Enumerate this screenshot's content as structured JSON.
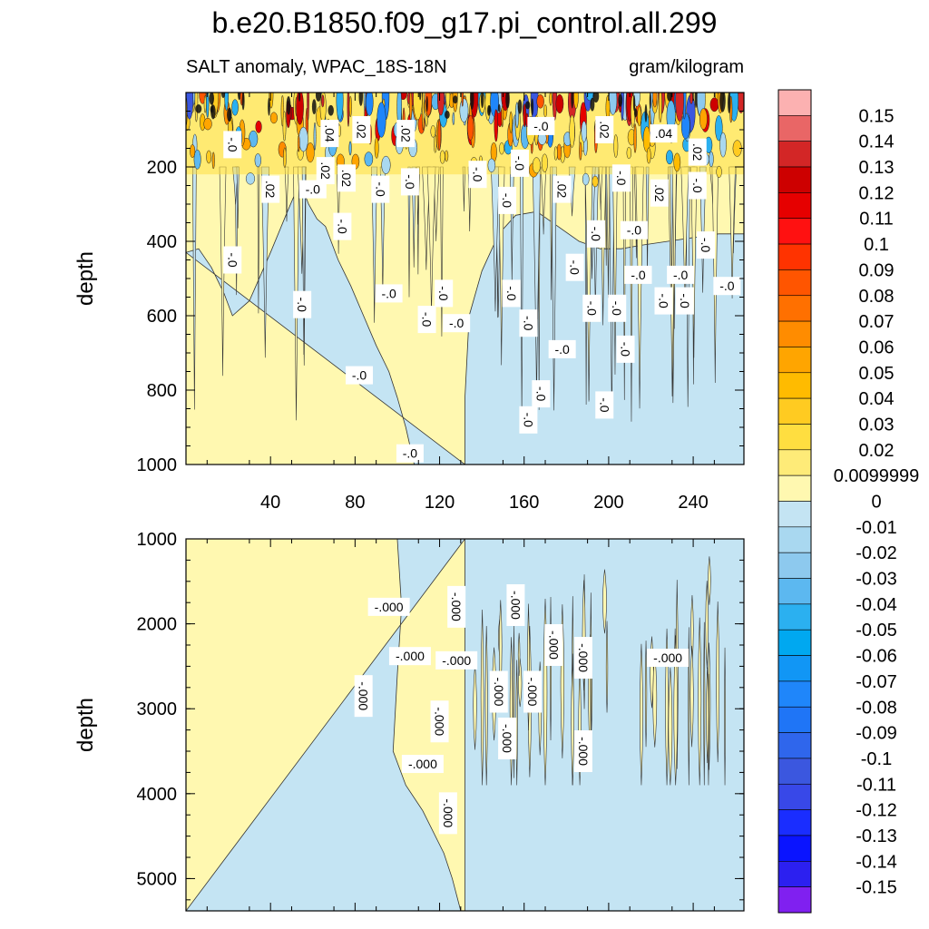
{
  "chart_data": {
    "type": "heatmap",
    "title": "b.e20.B1850.f09_g17.pi_control.all.299",
    "subtitle_left": "SALT anomaly, WPAC_18S-18N",
    "subtitle_right": "gram/kilogram",
    "x": {
      "range": [
        0,
        264
      ],
      "ticks": [
        40,
        80,
        120,
        160,
        200,
        240
      ],
      "tick_labels": [
        "40",
        "80",
        "120",
        "160",
        "200",
        "240"
      ]
    },
    "panels": [
      {
        "name": "upper-ocean",
        "ylabel": "depth",
        "ylim": [
          0,
          1000
        ],
        "ytick_values": [
          200,
          400,
          600,
          800,
          1000
        ],
        "yticks": [
          "200",
          "400",
          "600",
          "800",
          "1000"
        ],
        "sign_boundary": [
          [
            0,
            430
          ],
          [
            6,
            420
          ],
          [
            12,
            470
          ],
          [
            18,
            540
          ],
          [
            22,
            600
          ],
          [
            30,
            560
          ],
          [
            40,
            430
          ],
          [
            48,
            320
          ],
          [
            54,
            240
          ],
          [
            58,
            300
          ],
          [
            62,
            340
          ],
          [
            66,
            360
          ],
          [
            72,
            450
          ],
          [
            78,
            520
          ],
          [
            84,
            600
          ],
          [
            90,
            680
          ],
          [
            96,
            750
          ],
          [
            100,
            820
          ],
          [
            104,
            900
          ],
          [
            108,
            1000
          ],
          [
            132,
            1000
          ],
          [
            132,
            820
          ],
          [
            134,
            600
          ],
          [
            140,
            480
          ],
          [
            148,
            380
          ],
          [
            156,
            330
          ],
          [
            166,
            320
          ],
          [
            176,
            360
          ],
          [
            186,
            400
          ],
          [
            196,
            420
          ],
          [
            206,
            420
          ],
          [
            216,
            410
          ],
          [
            228,
            400
          ],
          [
            240,
            390
          ],
          [
            252,
            380
          ],
          [
            264,
            380
          ]
        ],
        "contour_labels": [
          {
            "x": 22,
            "d": 450,
            "text": "-.0"
          },
          {
            "x": 22,
            "d": 140,
            "text": "-.0"
          },
          {
            "x": 40,
            "d": 260,
            "text": ".02"
          },
          {
            "x": 55,
            "d": 570,
            "text": "-.0"
          },
          {
            "x": 60,
            "d": 260,
            "text": "-.0"
          },
          {
            "x": 66,
            "d": 210,
            "text": ".02"
          },
          {
            "x": 68,
            "d": 110,
            "text": ".04"
          },
          {
            "x": 74,
            "d": 360,
            "text": "-.0"
          },
          {
            "x": 76,
            "d": 230,
            "text": ".02"
          },
          {
            "x": 83,
            "d": 100,
            "text": ".02"
          },
          {
            "x": 82,
            "d": 760,
            "text": "-.0"
          },
          {
            "x": 92,
            "d": 260,
            "text": "-.0"
          },
          {
            "x": 96,
            "d": 540,
            "text": "-.0"
          },
          {
            "x": 104,
            "d": 110,
            "text": ".02"
          },
          {
            "x": 106,
            "d": 240,
            "text": "-.0"
          },
          {
            "x": 106,
            "d": 970,
            "text": "-.0"
          },
          {
            "x": 114,
            "d": 610,
            "text": "-.0"
          },
          {
            "x": 122,
            "d": 540,
            "text": "-.0"
          },
          {
            "x": 128,
            "d": 620,
            "text": "-.0"
          },
          {
            "x": 138,
            "d": 220,
            "text": "-.0"
          },
          {
            "x": 152,
            "d": 290,
            "text": "-.0"
          },
          {
            "x": 154,
            "d": 540,
            "text": "-.0"
          },
          {
            "x": 158,
            "d": 190,
            "text": "-.0"
          },
          {
            "x": 162,
            "d": 620,
            "text": "-.0"
          },
          {
            "x": 162,
            "d": 880,
            "text": "-.0"
          },
          {
            "x": 168,
            "d": 90,
            "text": "-.0"
          },
          {
            "x": 168,
            "d": 810,
            "text": "-.0"
          },
          {
            "x": 178,
            "d": 260,
            "text": ".02"
          },
          {
            "x": 178,
            "d": 690,
            "text": "-.0"
          },
          {
            "x": 184,
            "d": 470,
            "text": "-.0"
          },
          {
            "x": 192,
            "d": 580,
            "text": "-.0"
          },
          {
            "x": 194,
            "d": 380,
            "text": "-.0"
          },
          {
            "x": 198,
            "d": 100,
            "text": ".02"
          },
          {
            "x": 198,
            "d": 840,
            "text": "-.0"
          },
          {
            "x": 204,
            "d": 580,
            "text": "-.0"
          },
          {
            "x": 206,
            "d": 230,
            "text": "-.0"
          },
          {
            "x": 208,
            "d": 690,
            "text": "-.0"
          },
          {
            "x": 212,
            "d": 370,
            "text": "-.0"
          },
          {
            "x": 214,
            "d": 490,
            "text": "-.0"
          },
          {
            "x": 224,
            "d": 270,
            "text": ".02"
          },
          {
            "x": 226,
            "d": 110,
            "text": ".04"
          },
          {
            "x": 226,
            "d": 560,
            "text": "-.0"
          },
          {
            "x": 234,
            "d": 490,
            "text": "-.0"
          },
          {
            "x": 236,
            "d": 560,
            "text": "-.0"
          },
          {
            "x": 242,
            "d": 160,
            "text": ".02"
          },
          {
            "x": 242,
            "d": 250,
            "text": "-.0"
          },
          {
            "x": 246,
            "d": 410,
            "text": "-.0"
          },
          {
            "x": 256,
            "d": 520,
            "text": "-.0"
          }
        ]
      },
      {
        "name": "deep-ocean",
        "ylabel": "depth",
        "ylim": [
          1000,
          5380
        ],
        "ytick_values": [
          1000,
          2000,
          3000,
          4000,
          5000
        ],
        "yticks": [
          "1000",
          "2000",
          "3000",
          "4000",
          "5000"
        ],
        "sign_boundary": [
          [
            100,
            1000
          ],
          [
            102,
            1800
          ],
          [
            100,
            2600
          ],
          [
            98,
            3500
          ],
          [
            104,
            3900
          ],
          [
            112,
            4200
          ],
          [
            122,
            4700
          ],
          [
            126,
            5000
          ],
          [
            130,
            5380
          ],
          [
            132,
            5380
          ],
          [
            132,
            1000
          ]
        ],
        "contour_labels": [
          {
            "x": 84,
            "d": 2850,
            "text": "-.000"
          },
          {
            "x": 96,
            "d": 1800,
            "text": "-.000"
          },
          {
            "x": 106,
            "d": 2380,
            "text": "-.000"
          },
          {
            "x": 112,
            "d": 3650,
            "text": "-.000"
          },
          {
            "x": 120,
            "d": 3150,
            "text": "-.000"
          },
          {
            "x": 124,
            "d": 4230,
            "text": "-.000"
          },
          {
            "x": 128,
            "d": 1800,
            "text": "-.000"
          },
          {
            "x": 128,
            "d": 2430,
            "text": "-.000"
          },
          {
            "x": 148,
            "d": 2800,
            "text": "-.000"
          },
          {
            "x": 152,
            "d": 3350,
            "text": "-.000"
          },
          {
            "x": 156,
            "d": 1780,
            "text": "-.000"
          },
          {
            "x": 164,
            "d": 2800,
            "text": "-.000"
          },
          {
            "x": 174,
            "d": 2250,
            "text": "-.000"
          },
          {
            "x": 188,
            "d": 2400,
            "text": "-.000"
          },
          {
            "x": 188,
            "d": 3500,
            "text": "-.000"
          },
          {
            "x": 228,
            "d": 2400,
            "text": "-.000"
          }
        ]
      }
    ],
    "colorbar": {
      "labels": [
        "0.15",
        "0.14",
        "0.13",
        "0.12",
        "0.11",
        "0.1",
        "0.09",
        "0.08",
        "0.07",
        "0.06",
        "0.05",
        "0.04",
        "0.03",
        "0.02",
        "0.0099999",
        "0",
        "-0.01",
        "-0.02",
        "-0.03",
        "-0.04",
        "-0.05",
        "-0.06",
        "-0.07",
        "-0.08",
        "-0.09",
        "-0.1",
        "-0.11",
        "-0.12",
        "-0.13",
        "-0.14",
        "-0.15"
      ],
      "colors": [
        "#fcb1b1",
        "#e96666",
        "#d32626",
        "#cd0000",
        "#e60000",
        "#ff1111",
        "#ff3300",
        "#ff5500",
        "#ff7000",
        "#ff8c00",
        "#ffa500",
        "#ffbb00",
        "#ffcb21",
        "#ffde40",
        "#feeb78",
        "#fff8b0",
        "#c4e4f3",
        "#a9d8f0",
        "#8dc9ee",
        "#5cb8f0",
        "#2bb0f0",
        "#00a8f0",
        "#1196f5",
        "#1f86fa",
        "#1f75f6",
        "#2f66ec",
        "#3b57df",
        "#3848e8",
        "#1a2dff",
        "#0a14ff",
        "#2c20f0",
        "#8020f0"
      ]
    }
  }
}
